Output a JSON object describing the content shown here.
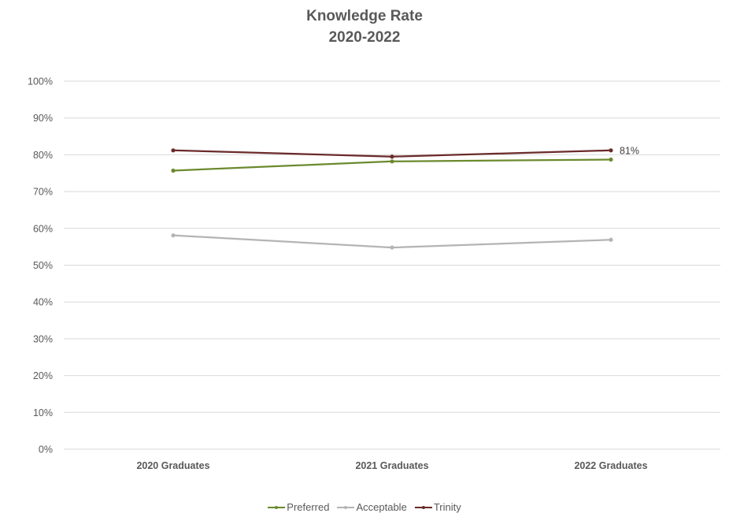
{
  "chart": {
    "title_line1": "Knowledge Rate",
    "title_line2": "2020-2022"
  },
  "legend": [
    {
      "name": "Preferred",
      "color": "#6b8a2e"
    },
    {
      "name": "Acceptable",
      "color": "#b4b4b4"
    },
    {
      "name": "Trinity",
      "color": "#6b2a2a"
    }
  ],
  "chart_data": {
    "type": "line",
    "title": "Knowledge Rate 2020-2022",
    "xlabel": "",
    "ylabel": "",
    "categories": [
      "2020 Graduates",
      "2021 Graduates",
      "2022 Graduates"
    ],
    "series": [
      {
        "name": "Preferred",
        "color": "#6b8a2e",
        "values": [
          0.757,
          0.782,
          0.787
        ]
      },
      {
        "name": "Acceptable",
        "color": "#b4b4b4",
        "values": [
          0.581,
          0.548,
          0.569
        ]
      },
      {
        "name": "Trinity",
        "color": "#6b2a2a",
        "values": [
          0.812,
          0.795,
          0.812
        ]
      }
    ],
    "ylim": [
      0,
      1
    ],
    "yticks": [
      "0%",
      "10%",
      "20%",
      "30%",
      "40%",
      "50%",
      "60%",
      "70%",
      "80%",
      "90%",
      "100%"
    ],
    "grid": true,
    "legend_position": "bottom",
    "annotations": [
      {
        "series": "Trinity",
        "category": "2022 Graduates",
        "text": "81%"
      }
    ]
  }
}
